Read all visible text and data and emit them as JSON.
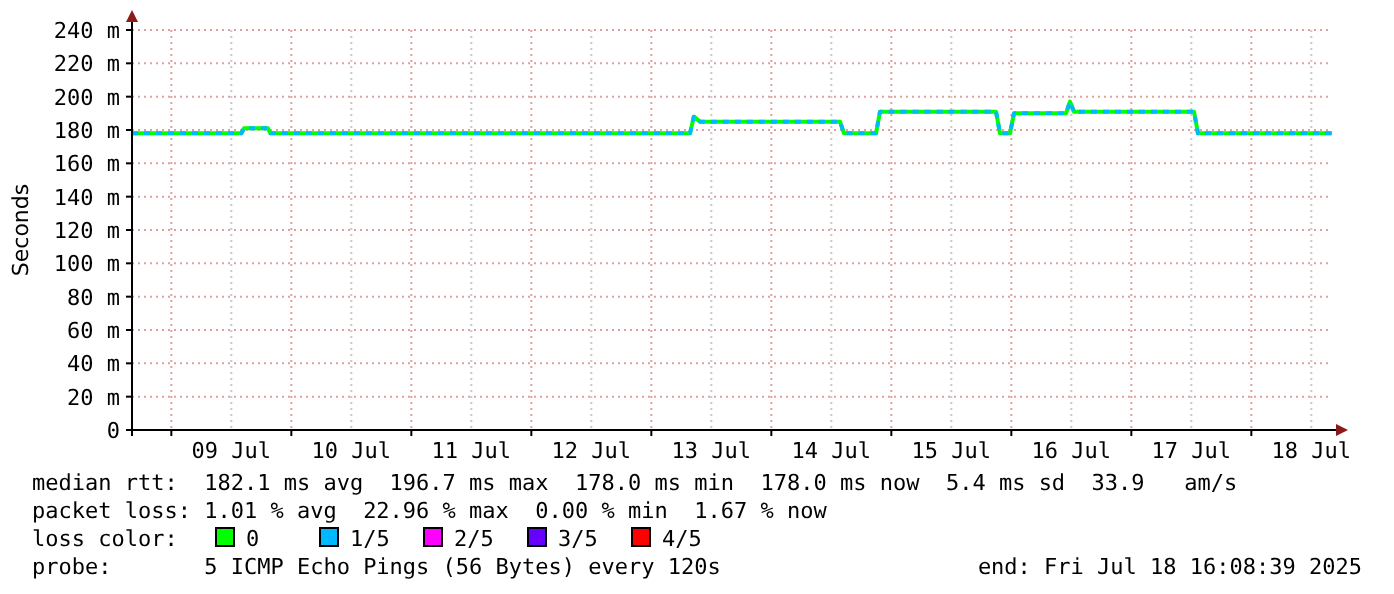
{
  "chart_data": {
    "type": "line",
    "ylabel": "Seconds",
    "legend_title": "loss color:",
    "legend": "bottom",
    "grid": true,
    "xlim": [
      "2025-07-08T16:08",
      "2025-07-18T16:08"
    ],
    "xticks": [
      {
        "value": "2025-07-09T00:00",
        "label": null
      },
      {
        "value": "2025-07-09T12:00",
        "label": "09 Jul"
      },
      {
        "value": "2025-07-10T00:00",
        "label": null
      },
      {
        "value": "2025-07-10T12:00",
        "label": "10 Jul"
      },
      {
        "value": "2025-07-11T00:00",
        "label": null
      },
      {
        "value": "2025-07-11T12:00",
        "label": "11 Jul"
      },
      {
        "value": "2025-07-12T00:00",
        "label": null
      },
      {
        "value": "2025-07-12T12:00",
        "label": "12 Jul"
      },
      {
        "value": "2025-07-13T00:00",
        "label": null
      },
      {
        "value": "2025-07-13T12:00",
        "label": "13 Jul"
      },
      {
        "value": "2025-07-14T00:00",
        "label": null
      },
      {
        "value": "2025-07-14T12:00",
        "label": "14 Jul"
      },
      {
        "value": "2025-07-15T00:00",
        "label": null
      },
      {
        "value": "2025-07-15T12:00",
        "label": "15 Jul"
      },
      {
        "value": "2025-07-16T00:00",
        "label": null
      },
      {
        "value": "2025-07-16T12:00",
        "label": "16 Jul"
      },
      {
        "value": "2025-07-17T00:00",
        "label": null
      },
      {
        "value": "2025-07-17T12:00",
        "label": "17 Jul"
      },
      {
        "value": "2025-07-18T00:00",
        "label": null
      },
      {
        "value": "2025-07-18T12:00",
        "label": "18 Jul"
      }
    ],
    "ylim": [
      0,
      240
    ],
    "yticks": [
      0,
      {
        "value": 20,
        "label": "20 m"
      },
      {
        "value": 40,
        "label": "40 m"
      },
      {
        "value": 60,
        "label": "60 m"
      },
      {
        "value": 80,
        "label": "80 m"
      },
      {
        "value": 100,
        "label": "100 m"
      },
      {
        "value": 120,
        "label": "120 m"
      },
      {
        "value": 140,
        "label": "140 m"
      },
      {
        "value": 160,
        "label": "160 m"
      },
      {
        "value": 180,
        "label": "180 m"
      },
      {
        "value": 200,
        "label": "200 m"
      },
      {
        "value": 220,
        "label": "220 m"
      },
      {
        "value": 240,
        "label": "240 m"
      }
    ],
    "x": [
      "2025-07-08T16:08",
      "2025-07-09T14:00",
      "2025-07-09T14:32",
      "2025-07-09T19:20",
      "2025-07-09T19:50",
      "2025-07-13T07:44",
      "2025-07-13T08:30",
      "2025-07-13T09:44",
      "2025-07-14T13:44",
      "2025-07-14T14:32",
      "2025-07-14T20:56",
      "2025-07-14T21:44",
      "2025-07-15T20:56",
      "2025-07-15T21:44",
      "2025-07-15T23:44",
      "2025-07-16T00:32",
      "2025-07-16T10:56",
      "2025-07-16T11:44",
      "2025-07-16T12:32",
      "2025-07-17T12:32",
      "2025-07-17T13:20",
      "2025-07-18T16:08"
    ],
    "series": [
      {
        "name": "0",
        "color": "#00ff00",
        "values": [
          178,
          178,
          181,
          181,
          178,
          178,
          188,
          185,
          185,
          178,
          178,
          191,
          191,
          178,
          178,
          190,
          190,
          197,
          191,
          191,
          178,
          178
        ]
      },
      {
        "name": "1/5",
        "color": "#00b8ff",
        "line_style": "dashed",
        "values": [
          178,
          178,
          181,
          181,
          178,
          178,
          188,
          185,
          185,
          178,
          178,
          191,
          191,
          178,
          178,
          190,
          190,
          197,
          191,
          191,
          178,
          178
        ]
      },
      {
        "name": "2/5",
        "color": "#ff00ff",
        "values": [
          null,
          null,
          null,
          null,
          null,
          null,
          null,
          null,
          null,
          null,
          null,
          null,
          null,
          null,
          null,
          null,
          null,
          null,
          null,
          null,
          null,
          null
        ]
      },
      {
        "name": "3/5",
        "color": "#6600ff",
        "values": [
          null,
          null,
          null,
          null,
          null,
          null,
          null,
          null,
          null,
          null,
          null,
          null,
          null,
          null,
          null,
          null,
          null,
          null,
          null,
          null,
          null,
          null
        ]
      },
      {
        "name": "4/5",
        "color": "#ff0000",
        "values": [
          null,
          null,
          null,
          null,
          null,
          null,
          null,
          null,
          null,
          null,
          null,
          null,
          null,
          null,
          null,
          null,
          null,
          null,
          null,
          null,
          null,
          null
        ]
      }
    ],
    "annotations": [
      "median rtt:  182.1 ms avg  196.7 ms max  178.0 ms min  178.0 ms now  5.4 ms sd  33.9   am/s",
      "packet loss: 1.01 % avg  22.96 % max  0.00 % min  1.67 % now",
      "probe:       5 ICMP Echo Pings (56 Bytes) every 120s",
      "end: Fri Jul 18 16:08:39 2025"
    ]
  }
}
